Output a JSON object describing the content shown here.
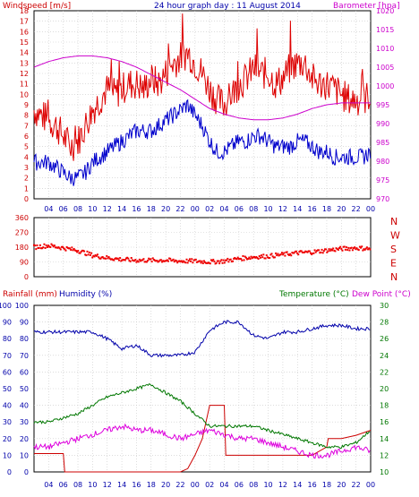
{
  "title": "24 hour graph day : 11 August 2014",
  "x_ticks": [
    "04",
    "06",
    "08",
    "10",
    "12",
    "14",
    "16",
    "18",
    "20",
    "22",
    "00",
    "02",
    "04",
    "06",
    "08",
    "10",
    "12",
    "14",
    "16",
    "18",
    "20",
    "22",
    "00"
  ],
  "colors": {
    "wind": "#dd0000",
    "gust": "#dd0000",
    "avg": "#0000cc",
    "baro": "#cc00cc",
    "dir": "#ee0000",
    "rain": "#cc0000",
    "hum": "#0000aa",
    "temp": "#007700",
    "dew": "#dd00dd"
  },
  "chart_data": [
    {
      "type": "line",
      "panel": "wind_baro",
      "title": "24 hour graph day : 11 August 2014",
      "ylabel_left": "Windspeed [m/s]",
      "ylabel_right": "Barometer [hpa]",
      "ylim_left": [
        0,
        18
      ],
      "ylim_right": [
        970,
        1020
      ],
      "yticks_left": [
        0,
        1,
        2,
        3,
        4,
        5,
        6,
        7,
        8,
        9,
        10,
        11,
        12,
        13,
        14,
        15,
        16,
        17,
        18
      ],
      "yticks_right": [
        970,
        975,
        980,
        985,
        990,
        995,
        1000,
        1005,
        1010,
        1015,
        1020
      ],
      "x_hours": [
        0,
        46
      ],
      "grid": true,
      "series": [
        {
          "key": "gust",
          "axis": "left",
          "x": [
            0,
            1,
            2,
            3,
            4,
            5,
            6,
            7,
            8,
            9,
            10,
            11,
            12,
            13,
            14,
            15,
            16,
            17,
            18,
            19,
            20,
            21,
            22,
            23,
            24,
            25,
            26,
            27,
            28,
            29,
            30,
            31,
            32,
            33,
            34,
            35,
            36,
            37,
            38,
            39,
            40,
            41,
            42,
            43,
            44,
            45,
            46
          ],
          "values": [
            8.5,
            8.0,
            7.5,
            7.0,
            6.0,
            5.0,
            5.5,
            7.0,
            8.5,
            9.5,
            10.5,
            10.0,
            10.5,
            11.0,
            11.0,
            10.5,
            11.5,
            11.0,
            12.0,
            13.0,
            13.5,
            14.0,
            13.0,
            12.0,
            10.5,
            9.5,
            9.0,
            10.0,
            11.0,
            11.5,
            12.5,
            12.0,
            12.0,
            11.0,
            11.5,
            12.5,
            13.0,
            13.0,
            11.5,
            11.0,
            11.0,
            10.5,
            10.0,
            9.5,
            9.5,
            9.5,
            10.0
          ]
        },
        {
          "key": "avg",
          "axis": "left",
          "x": [
            0,
            1,
            2,
            3,
            4,
            5,
            6,
            7,
            8,
            9,
            10,
            11,
            12,
            13,
            14,
            15,
            16,
            17,
            18,
            19,
            20,
            21,
            22,
            23,
            24,
            25,
            26,
            27,
            28,
            29,
            30,
            31,
            32,
            33,
            34,
            35,
            36,
            37,
            38,
            39,
            40,
            41,
            42,
            43,
            44,
            45,
            46
          ],
          "values": [
            3.5,
            3.5,
            3.5,
            3.0,
            2.5,
            2.0,
            2.0,
            2.5,
            3.5,
            4.0,
            4.5,
            5.0,
            5.5,
            6.0,
            6.5,
            6.5,
            6.5,
            7.0,
            7.5,
            8.0,
            8.5,
            9.0,
            8.0,
            7.0,
            5.5,
            4.5,
            4.5,
            5.0,
            5.5,
            5.5,
            6.0,
            6.0,
            5.5,
            5.0,
            5.0,
            5.0,
            5.5,
            5.5,
            5.0,
            4.5,
            4.5,
            4.0,
            4.0,
            4.0,
            4.0,
            4.0,
            4.5
          ]
        },
        {
          "key": "baro",
          "axis": "right",
          "x": [
            0,
            2,
            4,
            6,
            8,
            10,
            12,
            14,
            16,
            18,
            20,
            22,
            24,
            26,
            28,
            30,
            32,
            34,
            36,
            38,
            40,
            42,
            44,
            46
          ],
          "values": [
            1005,
            1006.5,
            1007.5,
            1008,
            1008,
            1007.5,
            1006.5,
            1005,
            1003,
            1001,
            999,
            996.5,
            994,
            992.5,
            991.5,
            991,
            991,
            991.5,
            992.5,
            994,
            995,
            995.5,
            995.5,
            995.5
          ]
        }
      ]
    },
    {
      "type": "scatter",
      "panel": "direction",
      "ylim": [
        0,
        360
      ],
      "yticks": [
        0,
        90,
        180,
        270,
        360
      ],
      "direction_labels": [
        "N",
        "W",
        "S",
        "E",
        "N"
      ],
      "x": [
        0,
        2,
        4,
        6,
        8,
        10,
        12,
        14,
        16,
        18,
        20,
        22,
        24,
        26,
        28,
        30,
        32,
        34,
        36,
        38,
        40,
        42,
        44,
        46
      ],
      "values": [
        180,
        190,
        175,
        160,
        130,
        115,
        105,
        100,
        100,
        100,
        95,
        95,
        90,
        95,
        110,
        120,
        125,
        135,
        145,
        150,
        160,
        170,
        175,
        170
      ]
    },
    {
      "type": "line",
      "panel": "rain_hum_temp_dew",
      "ylabel_rain": "Rainfall (mm)",
      "ylabel_hum": "Humidity (%)",
      "ylabel_temp": "Temperature (°C)",
      "ylabel_dew": "Dew Point (°C)",
      "ylim_rain": [
        0,
        100
      ],
      "ylim_hum": [
        0,
        100
      ],
      "ylim_temp": [
        10,
        30
      ],
      "yticks_left": [
        0,
        10,
        20,
        30,
        40,
        50,
        60,
        70,
        80,
        90,
        100
      ],
      "yticks_right": [
        10,
        12,
        14,
        16,
        18,
        20,
        22,
        24,
        26,
        28,
        30
      ],
      "series": [
        {
          "key": "hum",
          "axis": "hum",
          "x": [
            0,
            2,
            4,
            6,
            8,
            10,
            12,
            14,
            16,
            18,
            20,
            22,
            24,
            26,
            28,
            30,
            32,
            34,
            36,
            38,
            40,
            42,
            44,
            46
          ],
          "values": [
            84,
            84,
            84,
            84,
            84,
            80,
            74,
            76,
            70,
            70,
            70,
            72,
            85,
            90,
            90,
            82,
            80,
            84,
            84,
            86,
            88,
            88,
            86,
            86
          ]
        },
        {
          "key": "rain",
          "axis": "rain",
          "x": [
            0,
            4,
            4.2,
            20,
            21,
            22,
            23,
            23.5,
            24,
            26,
            26.2,
            32,
            36,
            38,
            40,
            40.2,
            42,
            44,
            46
          ],
          "values": [
            11,
            11,
            0,
            0,
            2,
            10,
            20,
            30,
            40,
            40,
            10,
            10,
            10,
            10,
            15,
            20,
            20,
            22,
            25
          ]
        },
        {
          "key": "temp",
          "axis": "temp",
          "x": [
            0,
            2,
            4,
            6,
            8,
            10,
            12,
            14,
            16,
            18,
            20,
            22,
            24,
            26,
            28,
            30,
            32,
            34,
            36,
            38,
            40,
            42,
            44,
            46
          ],
          "values": [
            16,
            16,
            16.5,
            17,
            18,
            19,
            19.5,
            20,
            20.5,
            19.5,
            18.5,
            17,
            15.5,
            15.5,
            15.5,
            15.5,
            15,
            14.5,
            14,
            13.5,
            13,
            13,
            13.5,
            15
          ]
        },
        {
          "key": "dew",
          "axis": "temp",
          "x": [
            0,
            2,
            4,
            6,
            8,
            10,
            12,
            14,
            16,
            18,
            20,
            22,
            24,
            26,
            28,
            30,
            32,
            34,
            36,
            38,
            40,
            42,
            44,
            46
          ],
          "values": [
            13,
            13,
            13.5,
            14,
            14.5,
            15,
            15.5,
            15,
            15,
            14.5,
            14,
            14.5,
            15,
            14.5,
            14,
            14,
            13.5,
            13,
            12.5,
            12,
            12,
            12.5,
            13,
            12.5
          ]
        }
      ]
    }
  ]
}
